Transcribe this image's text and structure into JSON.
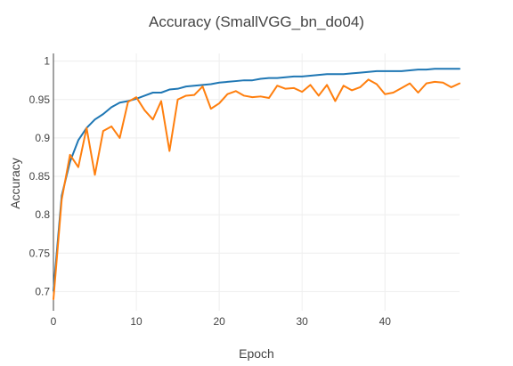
{
  "chart_data": {
    "type": "line",
    "title": "Accuracy (SmallVGG_bn_do04)",
    "xlabel": "Epoch",
    "ylabel": "Accuracy",
    "xlim": [
      0,
      49
    ],
    "ylim": [
      0.675,
      1.01
    ],
    "xticks": [
      0,
      10,
      20,
      30,
      40
    ],
    "xtick_labels": [
      "0",
      "10",
      "20",
      "30",
      "40"
    ],
    "yticks": [
      0.7,
      0.75,
      0.8,
      0.85,
      0.9,
      0.95,
      1
    ],
    "ytick_labels": [
      "0.7",
      "0.75",
      "0.8",
      "0.85",
      "0.9",
      "0.95",
      "1"
    ],
    "grid": true,
    "legend": false,
    "x": [
      0,
      1,
      2,
      3,
      4,
      5,
      6,
      7,
      8,
      9,
      10,
      11,
      12,
      13,
      14,
      15,
      16,
      17,
      18,
      19,
      20,
      21,
      22,
      23,
      24,
      25,
      26,
      27,
      28,
      29,
      30,
      31,
      32,
      33,
      34,
      35,
      36,
      37,
      38,
      39,
      40,
      41,
      42,
      43,
      44,
      45,
      46,
      47,
      48,
      49
    ],
    "series": [
      {
        "color": "#1f77b4",
        "values": [
          0.701,
          0.825,
          0.869,
          0.897,
          0.913,
          0.924,
          0.931,
          0.94,
          0.946,
          0.948,
          0.951,
          0.955,
          0.959,
          0.959,
          0.963,
          0.964,
          0.967,
          0.968,
          0.969,
          0.97,
          0.972,
          0.973,
          0.974,
          0.975,
          0.975,
          0.977,
          0.978,
          0.978,
          0.979,
          0.98,
          0.98,
          0.981,
          0.982,
          0.983,
          0.983,
          0.983,
          0.984,
          0.985,
          0.986,
          0.987,
          0.987,
          0.987,
          0.987,
          0.988,
          0.989,
          0.989,
          0.99,
          0.99,
          0.99,
          0.99
        ]
      },
      {
        "color": "#ff7f0e",
        "values": [
          0.69,
          0.82,
          0.878,
          0.862,
          0.913,
          0.852,
          0.909,
          0.915,
          0.9,
          0.947,
          0.953,
          0.936,
          0.924,
          0.948,
          0.883,
          0.95,
          0.955,
          0.956,
          0.967,
          0.938,
          0.945,
          0.957,
          0.961,
          0.955,
          0.953,
          0.954,
          0.952,
          0.968,
          0.964,
          0.965,
          0.96,
          0.969,
          0.955,
          0.969,
          0.948,
          0.968,
          0.962,
          0.966,
          0.976,
          0.97,
          0.957,
          0.959,
          0.965,
          0.971,
          0.959,
          0.971,
          0.973,
          0.972,
          0.966,
          0.971
        ]
      }
    ]
  }
}
